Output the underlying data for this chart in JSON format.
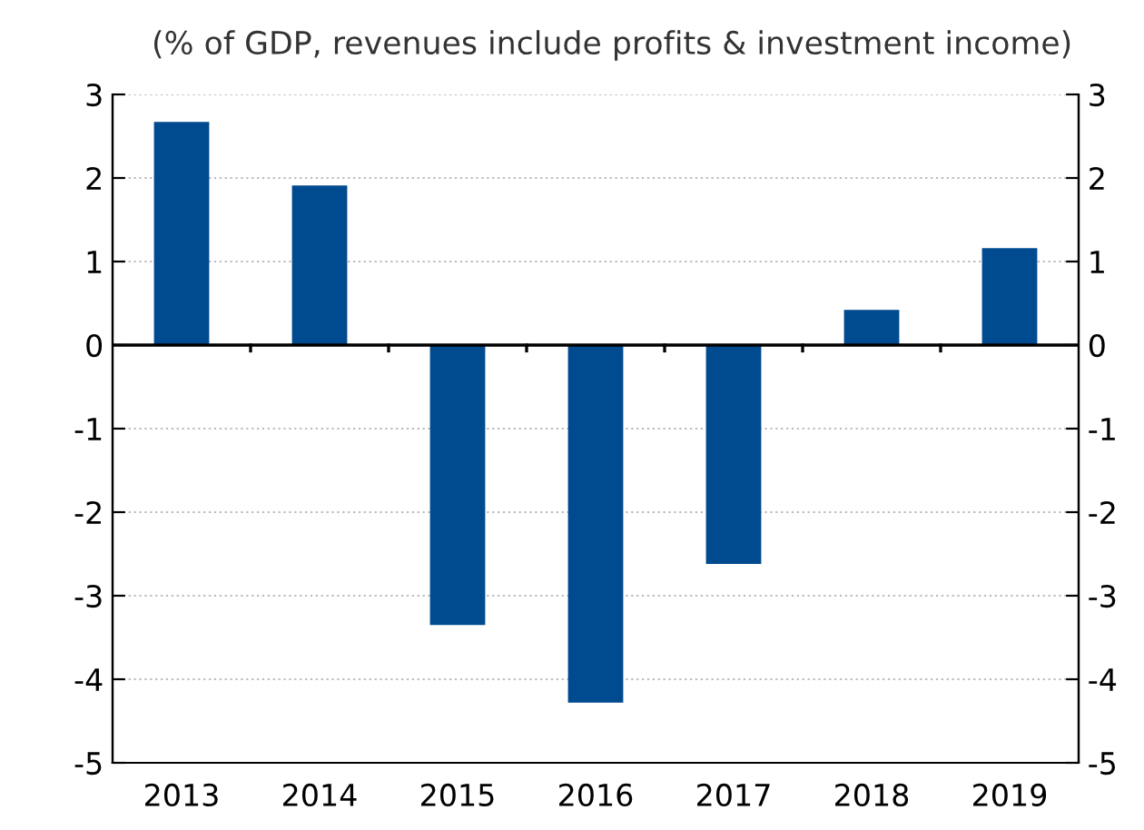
{
  "chart_data": {
    "type": "bar",
    "subtitle": "(% of GDP, revenues include profits & investment income)",
    "categories": [
      "2013",
      "2014",
      "2015",
      "2016",
      "2017",
      "2018",
      "2019"
    ],
    "values": [
      2.67,
      1.91,
      -3.35,
      -4.28,
      -2.62,
      0.42,
      1.16
    ],
    "color": "#004a8f",
    "ylim": [
      -5,
      3
    ],
    "yticks": [
      -5,
      -4,
      -3,
      -2,
      -1,
      0,
      1,
      2,
      3
    ],
    "y2lim": [
      -5,
      3
    ],
    "y2ticks": [
      -5,
      -4,
      -3,
      -2,
      -1,
      0,
      1,
      2,
      3
    ],
    "grid": "y",
    "legend": false
  }
}
